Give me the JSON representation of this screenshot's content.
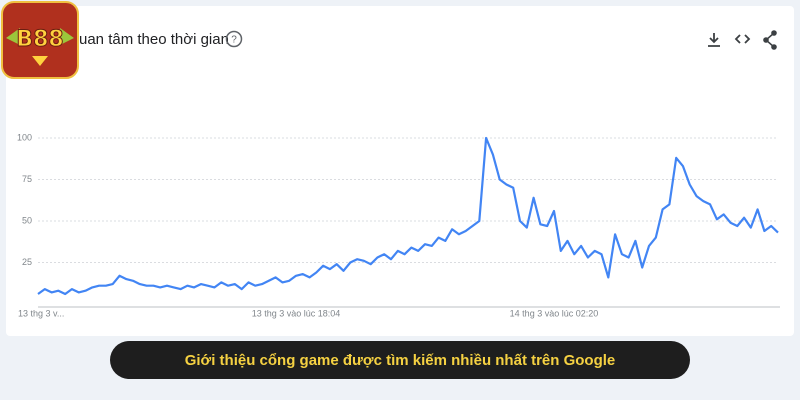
{
  "logo": "B88",
  "caption": "Giới thiệu cổng game được tìm kiếm nhiều nhất trên Google",
  "chart_data": {
    "type": "line",
    "title": "uan tâm theo thời gian",
    "help": "?",
    "categories": [
      "13 thg 3 v...",
      null,
      null,
      null,
      null,
      null,
      null,
      null,
      null,
      null,
      null,
      null,
      null,
      null,
      null,
      null,
      null,
      null,
      null,
      null,
      null,
      null,
      null,
      null,
      null,
      null,
      null,
      null,
      null,
      null,
      null,
      null,
      null,
      null,
      null,
      null,
      null,
      null,
      "13 thg 3 vào lúc 18:04",
      null,
      null,
      null,
      null,
      null,
      null,
      null,
      null,
      null,
      null,
      null,
      null,
      null,
      null,
      null,
      null,
      null,
      null,
      null,
      null,
      null,
      null,
      null,
      null,
      null,
      null,
      null,
      null,
      null,
      null,
      null,
      null,
      null,
      null,
      null,
      null,
      null,
      "14 thg 3 vào lúc 02:20",
      null,
      null,
      null,
      null,
      null,
      null,
      null,
      null,
      null,
      null,
      null,
      null,
      null,
      null,
      null,
      null,
      null,
      null,
      null,
      null,
      null,
      null,
      null,
      null,
      null,
      null,
      null,
      null,
      null,
      null,
      null,
      null,
      null
    ],
    "series": [
      {
        "name": "B88",
        "color": "#4285f4",
        "values": [
          6,
          9,
          7,
          8,
          6,
          9,
          7,
          8,
          10,
          11,
          11,
          12,
          17,
          15,
          14,
          12,
          11,
          11,
          10,
          11,
          10,
          9,
          11,
          10,
          12,
          11,
          10,
          13,
          11,
          12,
          9,
          13,
          11,
          12,
          14,
          16,
          13,
          14,
          17,
          18,
          16,
          19,
          23,
          21,
          24,
          20,
          25,
          27,
          26,
          24,
          28,
          30,
          27,
          32,
          30,
          34,
          32,
          36,
          35,
          40,
          38,
          45,
          42,
          44,
          47,
          50,
          100,
          90,
          75,
          72,
          70,
          50,
          46,
          64,
          48,
          47,
          56,
          32,
          38,
          30,
          35,
          28,
          32,
          30,
          16,
          42,
          30,
          28,
          38,
          22,
          35,
          40,
          57,
          60,
          88,
          83,
          72,
          65,
          62,
          60,
          51,
          54,
          49,
          47,
          52,
          46,
          57,
          44,
          47,
          43
        ]
      }
    ],
    "ylim": [
      0,
      100
    ],
    "yticks": [
      25,
      50,
      75,
      100
    ],
    "grid": true
  }
}
